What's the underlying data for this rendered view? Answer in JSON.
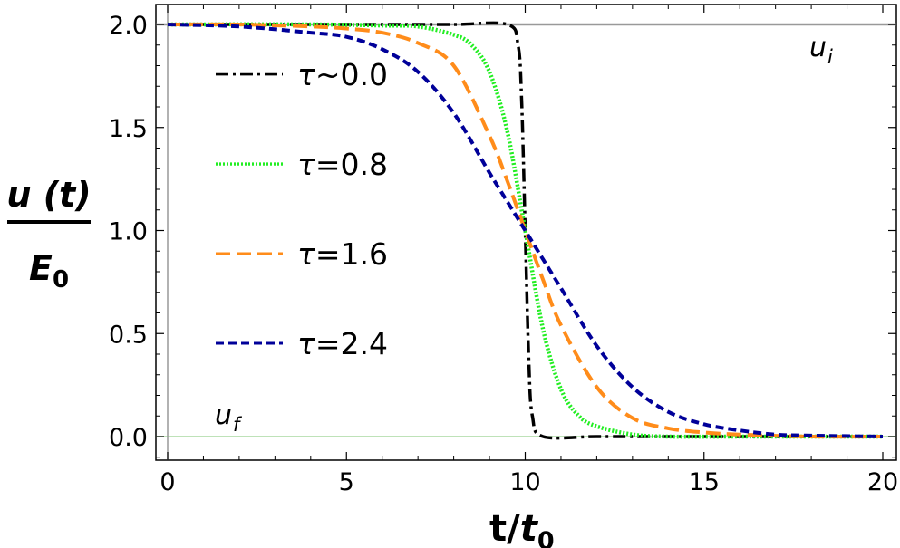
{
  "chart_data": {
    "type": "line",
    "xlabel": {
      "main": "t/",
      "var": "t",
      "sub": "0"
    },
    "ylabel": {
      "numerator": "u (t)",
      "denominator_var": "E",
      "denominator_sub": "0"
    },
    "xlim": [
      0,
      20
    ],
    "ylim": [
      -0.12,
      2.02
    ],
    "xticks": [
      0,
      5,
      10,
      15,
      20
    ],
    "xtick_labels": [
      "0",
      "5",
      "10",
      "15",
      "20"
    ],
    "yticks": [
      0.0,
      0.5,
      1.0,
      1.5,
      2.0
    ],
    "ytick_labels": [
      "0.0",
      "0.5",
      "1.0",
      "1.5",
      "2.0"
    ],
    "grid": false,
    "legend_position": "left",
    "reference_lines": [
      {
        "label_var": "u",
        "label_sub": "i",
        "y": 2.0,
        "color": "#999999"
      },
      {
        "label_var": "u",
        "label_sub": "f",
        "y": 0.0,
        "color": "#a8d8a0"
      }
    ],
    "series": [
      {
        "name": "τ~0.0",
        "color": "#000000",
        "dash": "dashdot",
        "x": [
          0,
          2,
          4,
          6,
          8,
          9.5,
          9.8,
          9.9,
          10.0,
          10.1,
          10.2,
          10.5,
          12,
          14,
          16,
          18,
          20
        ],
        "y": [
          2.0,
          2.0,
          2.0,
          2.0,
          2.0,
          2.0,
          1.9,
          1.63,
          1.0,
          0.37,
          0.1,
          0.0,
          0.0,
          0.0,
          0.0,
          0.0,
          0.0
        ]
      },
      {
        "name": "τ=0.8",
        "color": "#22ee22",
        "dash": "dotted",
        "x": [
          0,
          4,
          6,
          7,
          8,
          8.5,
          9,
          9.5,
          10,
          10.5,
          11,
          11.5,
          12,
          13,
          14,
          16,
          18,
          20
        ],
        "y": [
          2.0,
          2.0,
          1.995,
          1.99,
          1.95,
          1.9,
          1.77,
          1.48,
          1.0,
          0.52,
          0.23,
          0.1,
          0.05,
          0.01,
          0.0,
          0.0,
          0.0,
          0.0
        ]
      },
      {
        "name": "τ=1.6",
        "color": "#ff8c1a",
        "dash": "dashed",
        "x": [
          0,
          2,
          4,
          5,
          6,
          7,
          8,
          9,
          9.5,
          10,
          10.5,
          11,
          12,
          13,
          14,
          15,
          16,
          18,
          20
        ],
        "y": [
          2.0,
          2.0,
          1.99,
          1.98,
          1.96,
          1.91,
          1.8,
          1.46,
          1.24,
          1.0,
          0.76,
          0.54,
          0.24,
          0.09,
          0.04,
          0.02,
          0.01,
          0.0,
          0.0
        ]
      },
      {
        "name": "τ=2.4",
        "color": "#000099",
        "dash": "shortdash",
        "x": [
          0,
          2,
          4,
          5,
          6,
          7,
          8,
          9,
          9.5,
          10,
          10.5,
          11,
          12,
          13,
          14,
          15,
          16,
          17,
          18,
          20
        ],
        "y": [
          2.0,
          1.99,
          1.96,
          1.94,
          1.88,
          1.77,
          1.57,
          1.28,
          1.14,
          1.0,
          0.86,
          0.72,
          0.44,
          0.24,
          0.12,
          0.06,
          0.03,
          0.01,
          0.005,
          0.0
        ]
      }
    ]
  }
}
